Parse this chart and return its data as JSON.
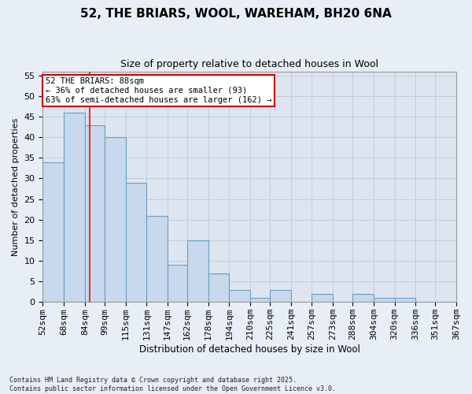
{
  "title1": "52, THE BRIARS, WOOL, WAREHAM, BH20 6NA",
  "title2": "Size of property relative to detached houses in Wool",
  "xlabel": "Distribution of detached houses by size in Wool",
  "ylabel": "Number of detached properties",
  "bin_labels": [
    "52sqm",
    "68sqm",
    "84sqm",
    "99sqm",
    "115sqm",
    "131sqm",
    "147sqm",
    "162sqm",
    "178sqm",
    "194sqm",
    "210sqm",
    "225sqm",
    "241sqm",
    "257sqm",
    "273sqm",
    "288sqm",
    "304sqm",
    "320sqm",
    "336sqm",
    "351sqm",
    "367sqm"
  ],
  "bin_edges": [
    52,
    68,
    84,
    99,
    115,
    131,
    147,
    162,
    178,
    194,
    210,
    225,
    241,
    257,
    273,
    288,
    304,
    320,
    336,
    351,
    367
  ],
  "heights": [
    34,
    46,
    43,
    40,
    29,
    21,
    9,
    15,
    7,
    3,
    1,
    3,
    0,
    2,
    0,
    2,
    1,
    1,
    0,
    0
  ],
  "bar_color": "#c8d8ed",
  "bar_edge_color": "#6a9ec0",
  "bar_lw": 0.8,
  "red_line_x": 88,
  "ylim_max": 56,
  "yticks": [
    0,
    5,
    10,
    15,
    20,
    25,
    30,
    35,
    40,
    45,
    50,
    55
  ],
  "grid_color": "#c0c8d8",
  "bg_color": "#dde6f0",
  "fig_bg_color": "#e8eef5",
  "annotation_title": "52 THE BRIARS: 88sqm",
  "annotation_line1": "← 36% of detached houses are smaller (93)",
  "annotation_line2": "63% of semi-detached houses are larger (162) →",
  "annotation_box_fc": "#ffffff",
  "annotation_box_ec": "#cc0000",
  "footnote1": "Contains HM Land Registry data © Crown copyright and database right 2025.",
  "footnote2": "Contains public sector information licensed under the Open Government Licence v3.0.",
  "title1_fontsize": 11,
  "title2_fontsize": 9,
  "xlabel_fontsize": 8.5,
  "ylabel_fontsize": 8,
  "tick_fontsize": 8,
  "annot_fontsize": 7.5,
  "footnote_fontsize": 6
}
